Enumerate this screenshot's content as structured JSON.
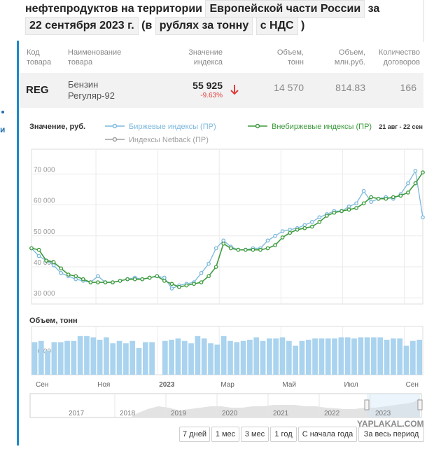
{
  "header": {
    "line1_text": "нефтепродуктов на территории",
    "line1_chip": "Европейской части России",
    "line1_suffix": "за",
    "date_chip": "22 сентября 2023 г.",
    "open_paren": "(в",
    "unit_chip": "рублях за тонну",
    "vat_chip": "с НДС",
    "close_paren": ")"
  },
  "columns": {
    "code": [
      "Код",
      "товара"
    ],
    "name": [
      "Наименование",
      "товара"
    ],
    "value": [
      "Значение",
      "индекса"
    ],
    "volume_t": [
      "Объем,",
      "тонн"
    ],
    "volume_rub": [
      "Объем,",
      "млн.руб."
    ],
    "contracts": [
      "Количество",
      "договоров"
    ]
  },
  "row": {
    "code": "REG",
    "name_1": "Бензин",
    "name_2": "Регуляр-92",
    "value": "55 925",
    "change": "-9.63%",
    "volume_t": "14 570",
    "volume_rub": "814.83",
    "contracts": "166"
  },
  "colors": {
    "exchange": "#7cb8dc",
    "otc": "#3d9a3d",
    "netback": "#a0a0a0",
    "bars": "#a9d3ee",
    "down_arrow": "#e23b3b",
    "accent": "#1e88c9"
  },
  "chart_data": {
    "type": "line",
    "title": "Значение, руб.",
    "date_range_label": "21 авг - 22 сен",
    "legend": [
      "Биржевые индексы (ПР)",
      "Внебиржевые индексы (ПР)",
      "Индексы Netback (ПР)"
    ],
    "ylim": [
      28000,
      78000
    ],
    "yticks": [
      30000,
      40000,
      50000,
      60000,
      70000
    ],
    "ytick_labels": [
      "30 000",
      "40 000",
      "50 000",
      "60 000",
      "70 000"
    ],
    "series": [
      {
        "name": "Биржевые индексы (ПР)",
        "values": [
          46000,
          43500,
          42000,
          40500,
          38000,
          37000,
          36000,
          35500,
          35000,
          37000,
          35000,
          35000,
          35500,
          36000,
          36500,
          36000,
          36500,
          37000,
          36500,
          33000,
          34000,
          34500,
          35000,
          38000,
          41000,
          46000,
          48500,
          46500,
          45500,
          45500,
          46000,
          46000,
          48500,
          50000,
          51500,
          52000,
          52500,
          53500,
          54500,
          56000,
          57000,
          58000,
          58000,
          59500,
          60500,
          64500,
          61000,
          62000,
          62500,
          62000,
          63500,
          67000,
          71000,
          56000
        ]
      },
      {
        "name": "Внебиржевые индексы (ПР)",
        "values": [
          46000,
          45500,
          42000,
          41500,
          39500,
          37500,
          37000,
          36000,
          35000,
          35000,
          35000,
          35000,
          35500,
          36000,
          36000,
          36000,
          36500,
          37000,
          35500,
          34500,
          33500,
          34000,
          34500,
          35000,
          37000,
          40000,
          47500,
          46000,
          45500,
          45500,
          45500,
          45500,
          46000,
          47000,
          49500,
          51000,
          52000,
          52500,
          53000,
          54500,
          56500,
          57500,
          58000,
          58500,
          59000,
          60500,
          62500,
          62000,
          62000,
          62500,
          63000,
          64000,
          67000,
          70500
        ]
      }
    ],
    "volume": {
      "label": "Объем, тонн",
      "yticks": [
        0,
        10000
      ],
      "ytick_labels": [
        "0",
        "10 000"
      ],
      "ymax": 20000,
      "values": [
        13500,
        14000,
        10000,
        13500,
        13500,
        14000,
        14000,
        16000,
        16000,
        15500,
        14500,
        15500,
        13000,
        14000,
        13000,
        14000,
        11000,
        13500,
        13500,
        0,
        14000,
        14500,
        15000,
        14000,
        13000,
        16000,
        15000,
        13000,
        12500,
        16000,
        14000,
        13500,
        14000,
        14500,
        15500,
        14000,
        15000,
        15000,
        15500,
        14000,
        12000,
        14000,
        14500,
        15000,
        15000,
        15000,
        15000,
        15500,
        15500,
        15000,
        15500,
        15500,
        15500,
        15500,
        14500,
        15000,
        15000,
        12000,
        14000,
        14500
      ]
    },
    "x_month_labels": [
      "Сен",
      "Ноя",
      "2023",
      "Мар",
      "Май",
      "Июл",
      "Сен"
    ],
    "navigator_years": [
      "2017",
      "2018",
      "2019",
      "2020",
      "2021",
      "2022",
      "2023"
    ],
    "range_buttons": [
      "7 дней",
      "1 мес",
      "3 мес",
      "1 год",
      "С начала года",
      "За весь период"
    ]
  },
  "watermark": "YAPLAKAL.COM"
}
